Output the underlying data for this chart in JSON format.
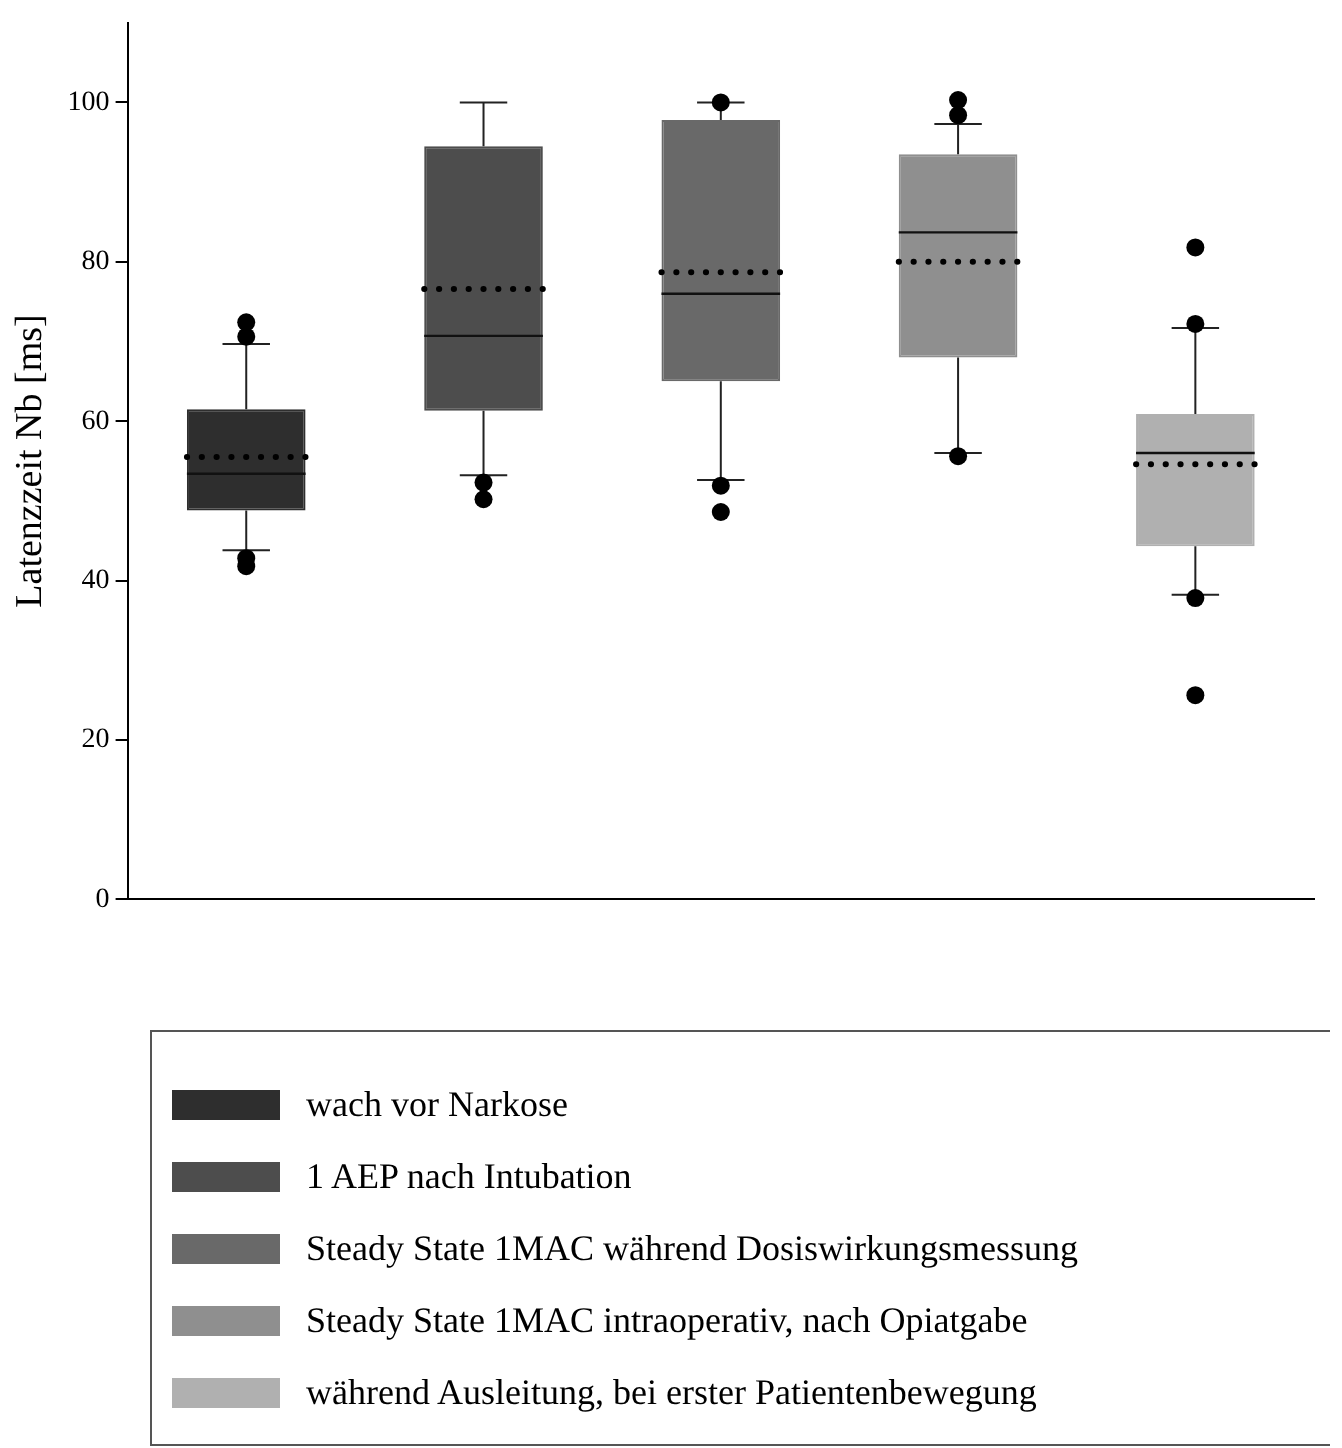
{
  "chart_data": {
    "type": "box",
    "ylabel": "Latenzzeit Nb [ms]",
    "categories": [
      null,
      null,
      null,
      null,
      null
    ],
    "ylim": [
      0,
      110
    ],
    "yticks": [
      0,
      20,
      40,
      60,
      80,
      100
    ],
    "legend": "bottom",
    "grid": false,
    "series": [
      {
        "name": "wach vor Narkose",
        "color": "#2e2e2e",
        "boxes": [
          {
            "low": 43.8,
            "q1": 48.8,
            "median": 53.4,
            "q3": 61.5,
            "high": 69.7,
            "mean": 55.5,
            "outliers": [
              72.4,
              70.6,
              42.8,
              41.8
            ]
          },
          null,
          null,
          null,
          null
        ]
      },
      {
        "name": "1 AEP nach Intubation",
        "color": "#4d4d4d",
        "boxes": [
          null,
          {
            "low": 53.2,
            "q1": 61.3,
            "median": 70.7,
            "q3": 94.5,
            "high": 100,
            "mean": 76.6,
            "outliers": [
              52.3,
              50.2
            ]
          },
          null,
          null,
          null
        ]
      },
      {
        "name": "Steady State 1MAC während Dosiswirkungsmessung",
        "color": "#696969",
        "boxes": [
          null,
          null,
          {
            "low": 52.6,
            "q1": 65,
            "median": 76,
            "q3": 97.8,
            "high": 100,
            "mean": 78.7,
            "outliers": [
              100,
              51.9,
              48.6
            ]
          },
          null,
          null
        ]
      },
      {
        "name": "Steady State 1MAC intraoperativ, nach Opiatgabe",
        "color": "#8f8f8f",
        "boxes": [
          null,
          null,
          null,
          {
            "low": 56,
            "q1": 68,
            "median": 83.7,
            "q3": 93.5,
            "high": 97.3,
            "mean": 80,
            "outliers": [
              100.3,
              98.4,
              55.6
            ]
          },
          null
        ]
      },
      {
        "name": "während Ausleitung, bei erster Patientenbewegung",
        "color": "#b0b0b0",
        "boxes": [
          null,
          null,
          null,
          null,
          {
            "low": 38.2,
            "q1": 44.3,
            "median": 56,
            "q3": 60.9,
            "high": 71.7,
            "mean": 54.6,
            "outliers": [
              81.8,
              72.2,
              37.8,
              25.6
            ]
          }
        ]
      }
    ]
  }
}
